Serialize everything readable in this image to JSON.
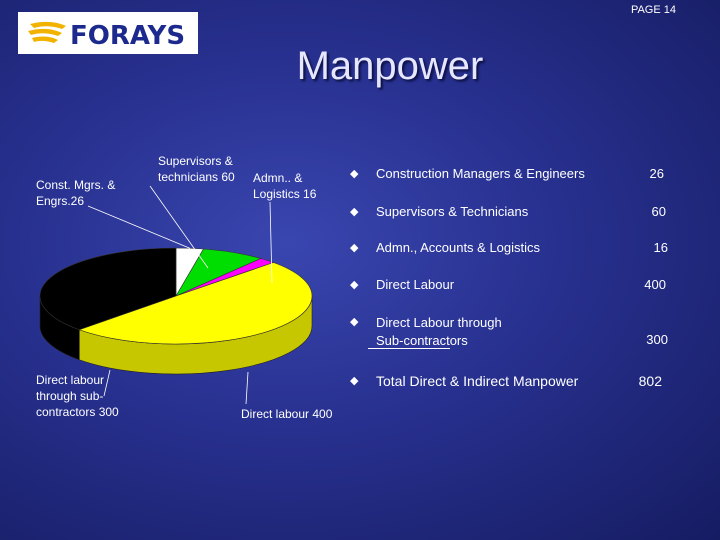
{
  "page_number": "PAGE 14",
  "logo_text": "FORAYS",
  "title": "Manpower",
  "colors": {
    "black": "#000000",
    "yellow": "#ffff00",
    "green": "#00dd00",
    "magenta": "#ff00ff",
    "white": "#ffffff"
  },
  "chart_data": {
    "type": "pie",
    "title": "",
    "slices": [
      {
        "label_lines": [
          "Const. Mgrs. &",
          "Engrs.26"
        ],
        "value": 26,
        "color": "#ffffff"
      },
      {
        "label_lines": [
          "Supervisors &",
          "technicians 60"
        ],
        "value": 60,
        "color": "#00dd00"
      },
      {
        "label_lines": [
          "Admn.. &",
          "Logistics 16"
        ],
        "value": 16,
        "color": "#ff00ff"
      },
      {
        "label_lines": [
          "Direct labour 400"
        ],
        "value": 400,
        "color": "#ffff00"
      },
      {
        "label_lines": [
          "Direct labour",
          "through sub-",
          "contractors 300"
        ],
        "value": 300,
        "color": "#000000"
      }
    ]
  },
  "table": {
    "rows": [
      {
        "label": "Construction Managers & Engineers",
        "value": "26"
      },
      {
        "label": "Supervisors & Technicians",
        "value": "60"
      },
      {
        "label": "Admn., Accounts & Logistics",
        "value": "16"
      },
      {
        "label": "Direct  Labour",
        "value": "400"
      },
      {
        "label_line1": "Direct   Labour through",
        "label_line2": "Sub-contractors",
        "value": "300"
      }
    ],
    "total": {
      "label": "Total Direct & Indirect Manpower",
      "value": "802"
    }
  }
}
